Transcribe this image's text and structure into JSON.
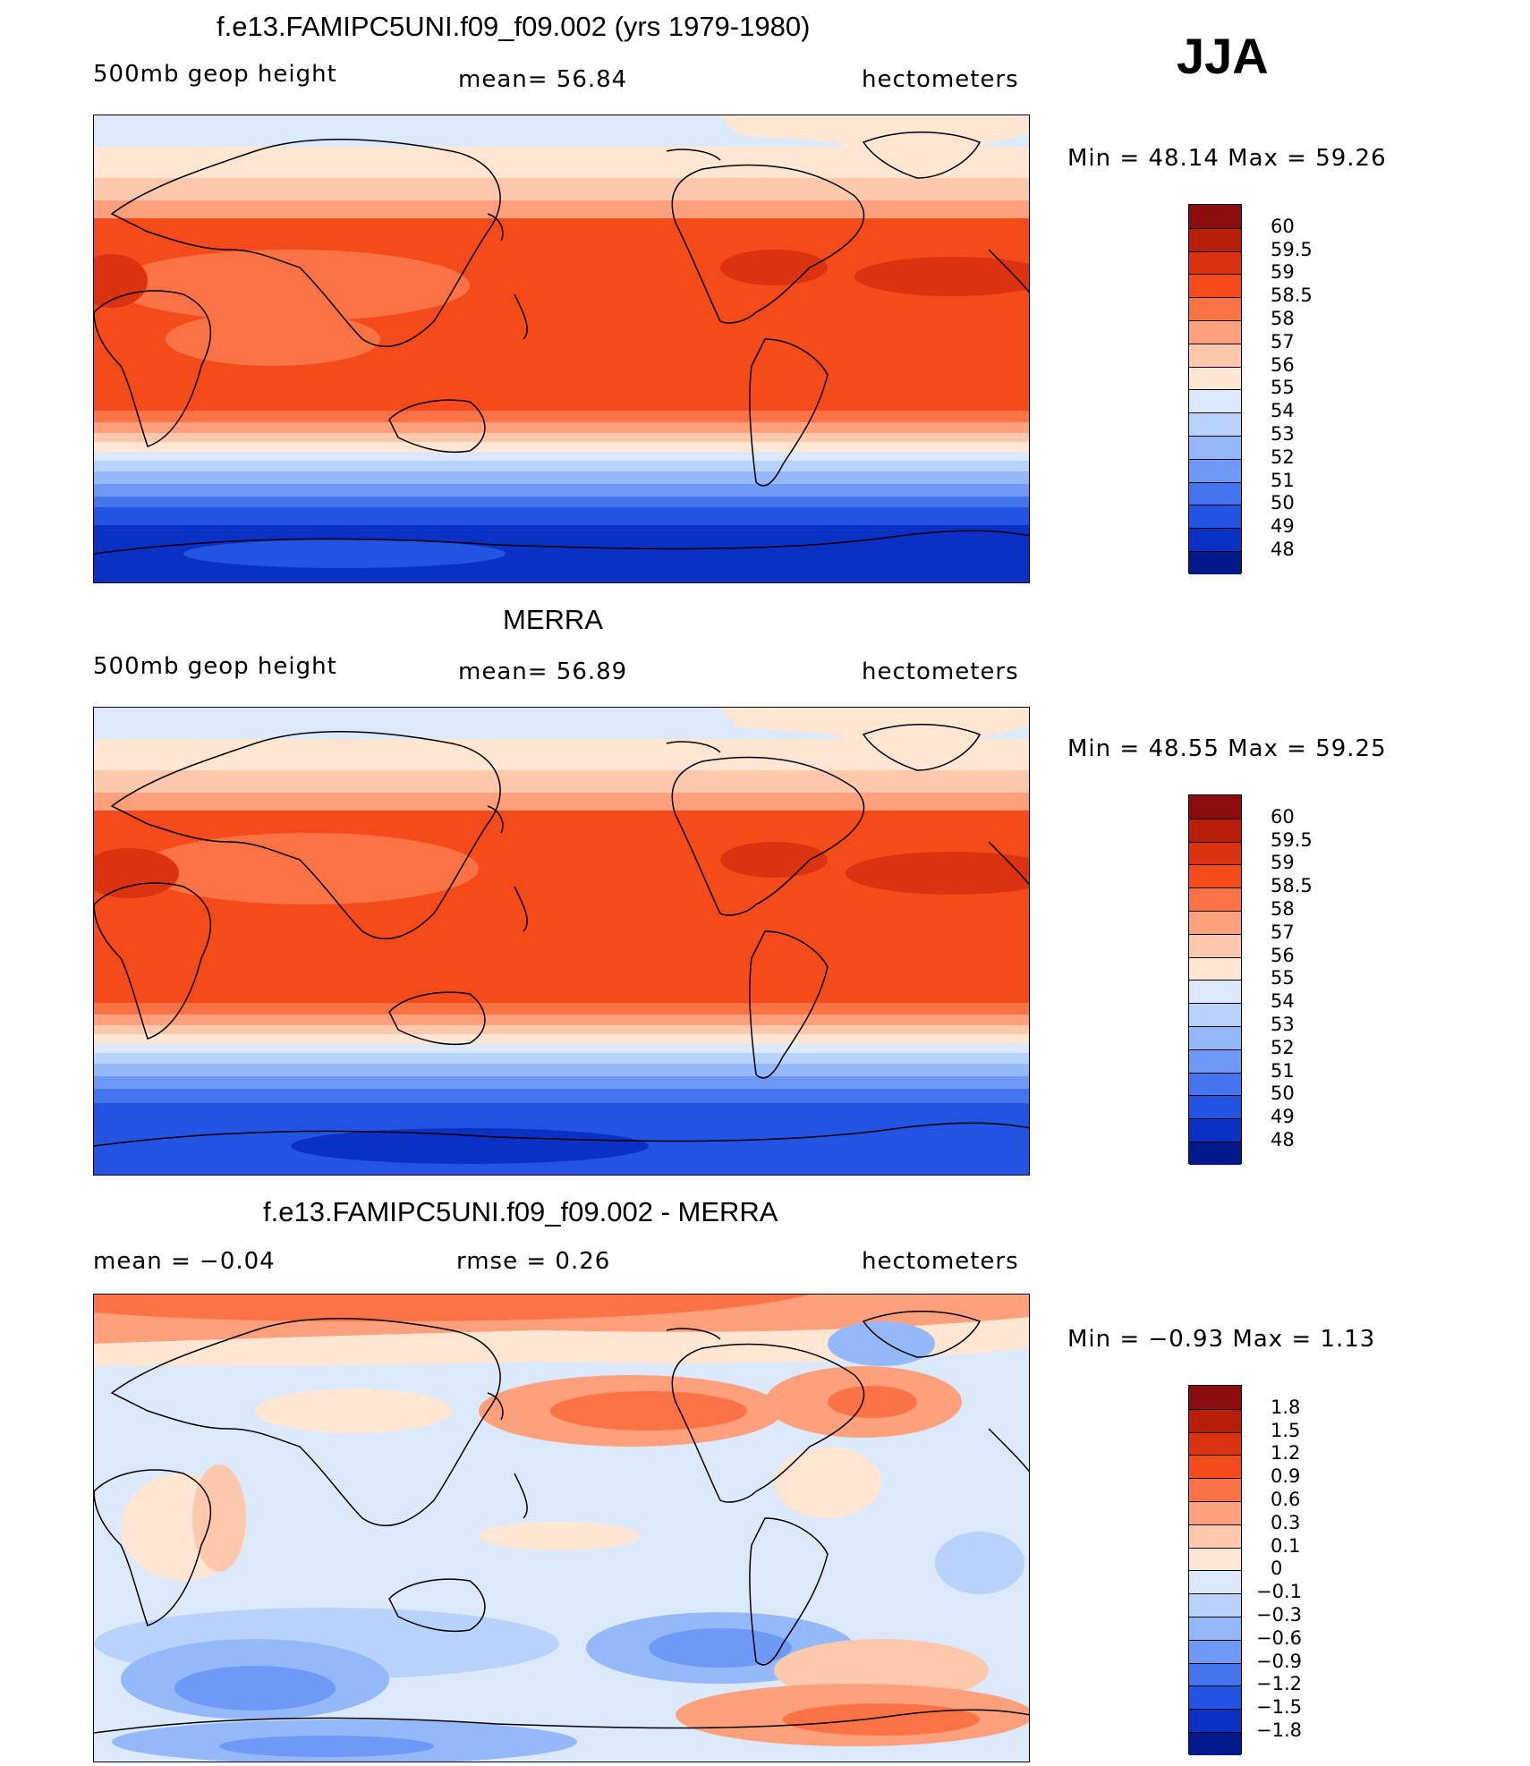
{
  "season": "JJA",
  "panels": [
    {
      "title": "f.e13.FAMIPC5UNI.f09_f09.002 (yrs 1979-1980)",
      "left_label": "500mb  geop  height",
      "center_label": "mean=   56.84",
      "units": "hectometers",
      "min_max": "Min  =    48.14  Max  =    59.26",
      "map_name": "model-map",
      "colorbar": {
        "labels": [
          "60",
          "59.5",
          "59",
          "58.5",
          "58",
          "57",
          "56",
          "55",
          "54",
          "53",
          "52",
          "51",
          "50",
          "49",
          "48"
        ],
        "colors": [
          "#8c0d0d",
          "#b81e0a",
          "#db3210",
          "#f54b1a",
          "#fb7344",
          "#fea07c",
          "#fec8ac",
          "#ffe6d2",
          "#dce9fb",
          "#b8d3fb",
          "#94b9fa",
          "#6f99f7",
          "#4575ee",
          "#2253e3",
          "#0b30c4",
          "#001a8c"
        ]
      }
    },
    {
      "title": "MERRA",
      "left_label": "500mb  geop  height",
      "center_label": "mean=   56.89",
      "units": "hectometers",
      "min_max": "Min  =    48.55  Max  =    59.25",
      "map_name": "merra-map",
      "colorbar": {
        "labels": [
          "60",
          "59.5",
          "59",
          "58.5",
          "58",
          "57",
          "56",
          "55",
          "54",
          "53",
          "52",
          "51",
          "50",
          "49",
          "48"
        ],
        "colors": [
          "#8c0d0d",
          "#b81e0a",
          "#db3210",
          "#f54b1a",
          "#fb7344",
          "#fea07c",
          "#fec8ac",
          "#ffe6d2",
          "#dce9fb",
          "#b8d3fb",
          "#94b9fa",
          "#6f99f7",
          "#4575ee",
          "#2253e3",
          "#0b30c4",
          "#001a8c"
        ]
      }
    },
    {
      "title": "f.e13.FAMIPC5UNI.f09_f09.002 - MERRA",
      "left_label": "mean  =    −0.04",
      "center_label": "rmse  =     0.26",
      "units": "hectometers",
      "min_max": "Min  =    −0.93  Max  =      1.13",
      "map_name": "difference-map",
      "colorbar": {
        "labels": [
          "1.8",
          "1.5",
          "1.2",
          "0.9",
          "0.6",
          "0.3",
          "0.1",
          "0",
          "−0.1",
          "−0.3",
          "−0.6",
          "−0.9",
          "−1.2",
          "−1.5",
          "−1.8"
        ],
        "colors": [
          "#8c0d0d",
          "#b81e0a",
          "#db3210",
          "#f54b1a",
          "#fb7344",
          "#fea07c",
          "#fec8ac",
          "#ffe6d2",
          "#dce9fb",
          "#b8d3fb",
          "#94b9fa",
          "#6f99f7",
          "#4575ee",
          "#2253e3",
          "#0b30c4",
          "#001a8c"
        ]
      }
    }
  ]
}
